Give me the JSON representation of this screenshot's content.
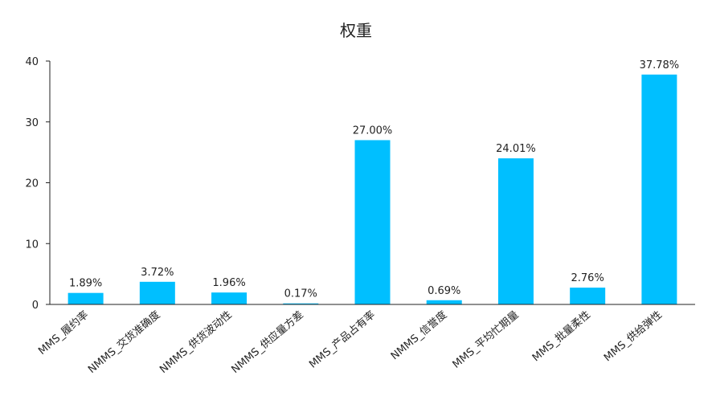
{
  "chart_data": {
    "type": "bar",
    "title": "权重",
    "categories": [
      "MMS_履约率",
      "NMMS_交货准确度",
      "NMMS_供货波动性",
      "NMMS_供应量方差",
      "MMS_产品占有率",
      "NMMS_信誉度",
      "MMS_平均忙期量",
      "MMS_批量柔性",
      "MMS_供给弹性"
    ],
    "values": [
      1.89,
      3.72,
      1.96,
      0.17,
      27.0,
      0.69,
      24.01,
      2.76,
      37.78
    ],
    "data_labels": [
      "1.89%",
      "3.72%",
      "1.96%",
      "0.17%",
      "27.00%",
      "0.69%",
      "24.01%",
      "2.76%",
      "37.78%"
    ],
    "ylim": [
      0,
      40
    ],
    "yticks": [
      "0",
      "10",
      "20",
      "30",
      "40"
    ],
    "xlabel": "",
    "ylabel": "",
    "grid": false,
    "bar_color": "#00BFFF"
  }
}
